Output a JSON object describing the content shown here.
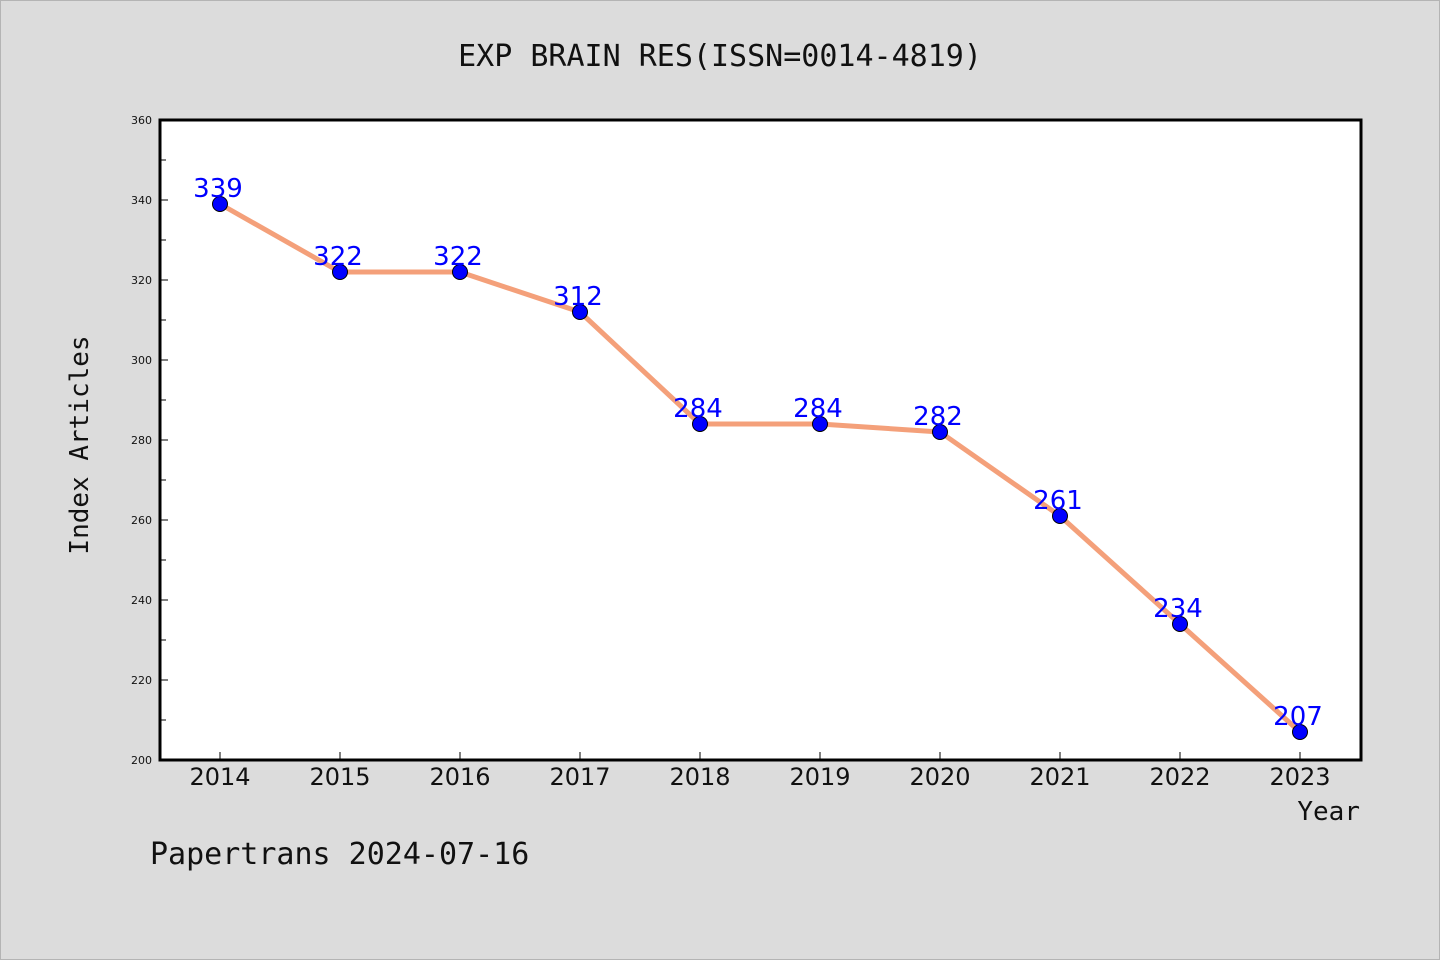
{
  "chart_data": {
    "type": "line",
    "title": "EXP BRAIN RES(ISSN=0014-4819)",
    "xlabel": "Year",
    "ylabel": "Index Articles",
    "categories": [
      "2014",
      "2015",
      "2016",
      "2017",
      "2018",
      "2019",
      "2020",
      "2021",
      "2022",
      "2023"
    ],
    "values": [
      339,
      322,
      322,
      312,
      284,
      284,
      282,
      261,
      234,
      207
    ],
    "ylim": [
      200,
      360
    ],
    "yticks": [
      200,
      220,
      240,
      260,
      280,
      300,
      320,
      340,
      360
    ],
    "grid": false,
    "data_labels": true,
    "line_color": "#f4a07a",
    "marker_color": "#0000ff",
    "label_color": "#0000ff"
  },
  "footer": {
    "text": "Papertrans 2024-07-16"
  }
}
